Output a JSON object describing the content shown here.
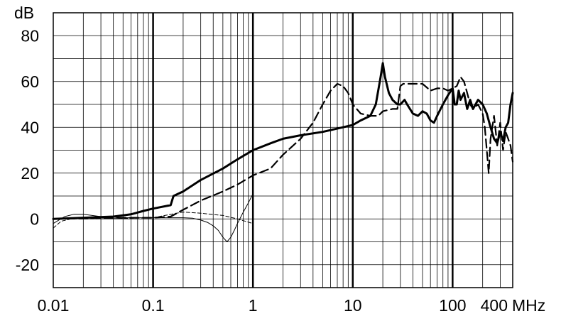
{
  "chart_data": {
    "type": "line",
    "title": "",
    "xlabel": "MHz",
    "ylabel": "dB",
    "xscale": "log",
    "xlim": [
      0.01,
      400
    ],
    "ylim": [
      -30,
      90
    ],
    "grid": true,
    "legend": "none",
    "x_ticks": [
      {
        "value": 0.01,
        "label": "0.01"
      },
      {
        "value": 0.1,
        "label": "0.1"
      },
      {
        "value": 1,
        "label": "1"
      },
      {
        "value": 10,
        "label": "10"
      },
      {
        "value": 100,
        "label": "100"
      },
      {
        "value": 400,
        "label": "400"
      }
    ],
    "y_ticks": [
      {
        "value": 80,
        "label": "80"
      },
      {
        "value": 60,
        "label": "60"
      },
      {
        "value": 40,
        "label": "40"
      },
      {
        "value": 20,
        "label": "20"
      },
      {
        "value": 0,
        "label": "0"
      },
      {
        "value": -20,
        "label": "-20"
      }
    ],
    "series": [
      {
        "style": "thick-solid",
        "points": [
          [
            0.01,
            0
          ],
          [
            0.02,
            0.5
          ],
          [
            0.04,
            1
          ],
          [
            0.06,
            2
          ],
          [
            0.08,
            3.5
          ],
          [
            0.1,
            4.5
          ],
          [
            0.15,
            6
          ],
          [
            0.16,
            10
          ],
          [
            0.2,
            12
          ],
          [
            0.3,
            17
          ],
          [
            0.5,
            22
          ],
          [
            0.7,
            26
          ],
          [
            1,
            30
          ],
          [
            1.5,
            33
          ],
          [
            2,
            35
          ],
          [
            3,
            36.5
          ],
          [
            5,
            38
          ],
          [
            8,
            40
          ],
          [
            10,
            41
          ],
          [
            12,
            43
          ],
          [
            15,
            45
          ],
          [
            17,
            50
          ],
          [
            19,
            62
          ],
          [
            20,
            68
          ],
          [
            21,
            62
          ],
          [
            23,
            55
          ],
          [
            25,
            52
          ],
          [
            28,
            50
          ],
          [
            30,
            50
          ],
          [
            33,
            52
          ],
          [
            35,
            50
          ],
          [
            40,
            46
          ],
          [
            45,
            45
          ],
          [
            50,
            47
          ],
          [
            55,
            46
          ],
          [
            60,
            43
          ],
          [
            65,
            42
          ],
          [
            70,
            45
          ],
          [
            80,
            50
          ],
          [
            90,
            54
          ],
          [
            100,
            57
          ],
          [
            105,
            50
          ],
          [
            110,
            50
          ],
          [
            115,
            56
          ],
          [
            120,
            52
          ],
          [
            130,
            55
          ],
          [
            140,
            48
          ],
          [
            150,
            52
          ],
          [
            160,
            48
          ],
          [
            180,
            52
          ],
          [
            200,
            50
          ],
          [
            220,
            46
          ],
          [
            240,
            40
          ],
          [
            260,
            35
          ],
          [
            280,
            33
          ],
          [
            300,
            38
          ],
          [
            320,
            34
          ],
          [
            340,
            40
          ],
          [
            360,
            42
          ],
          [
            380,
            50
          ],
          [
            400,
            55
          ]
        ]
      },
      {
        "style": "thick-dashed",
        "points": [
          [
            0.01,
            0
          ],
          [
            0.02,
            0.2
          ],
          [
            0.05,
            0.5
          ],
          [
            0.1,
            0.5
          ],
          [
            0.15,
            1
          ],
          [
            0.2,
            4
          ],
          [
            0.3,
            8
          ],
          [
            0.5,
            12
          ],
          [
            0.7,
            15
          ],
          [
            1,
            19
          ],
          [
            1.5,
            22
          ],
          [
            2,
            28
          ],
          [
            3,
            35
          ],
          [
            4,
            42
          ],
          [
            5,
            50
          ],
          [
            6,
            56
          ],
          [
            7,
            59
          ],
          [
            8,
            58
          ],
          [
            9,
            55
          ],
          [
            10,
            50
          ],
          [
            12,
            46
          ],
          [
            15,
            45
          ],
          [
            18,
            45
          ],
          [
            20,
            47
          ],
          [
            25,
            48
          ],
          [
            28,
            48
          ],
          [
            30,
            58
          ],
          [
            32,
            59
          ],
          [
            35,
            59
          ],
          [
            50,
            59
          ],
          [
            60,
            56
          ],
          [
            70,
            57
          ],
          [
            80,
            57
          ],
          [
            90,
            56
          ],
          [
            100,
            57
          ],
          [
            110,
            58
          ],
          [
            120,
            62
          ],
          [
            130,
            60
          ],
          [
            140,
            55
          ],
          [
            150,
            50
          ],
          [
            160,
            48
          ],
          [
            180,
            50
          ],
          [
            200,
            46
          ],
          [
            210,
            40
          ],
          [
            220,
            30
          ],
          [
            230,
            20
          ],
          [
            240,
            35
          ],
          [
            260,
            45
          ],
          [
            280,
            32
          ],
          [
            300,
            42
          ],
          [
            320,
            30
          ],
          [
            340,
            38
          ],
          [
            360,
            35
          ],
          [
            380,
            32
          ],
          [
            400,
            25
          ]
        ]
      },
      {
        "style": "thin-solid",
        "points": [
          [
            0.01,
            -2
          ],
          [
            0.013,
            1
          ],
          [
            0.016,
            2
          ],
          [
            0.02,
            2
          ],
          [
            0.03,
            1
          ],
          [
            0.05,
            0.5
          ],
          [
            0.08,
            0.5
          ],
          [
            0.1,
            0.5
          ],
          [
            0.15,
            0.5
          ],
          [
            0.2,
            0.5
          ],
          [
            0.25,
            0.3
          ],
          [
            0.3,
            -0.5
          ],
          [
            0.35,
            -1.5
          ],
          [
            0.4,
            -3
          ],
          [
            0.45,
            -5
          ],
          [
            0.5,
            -8
          ],
          [
            0.55,
            -10
          ],
          [
            0.6,
            -8
          ],
          [
            0.65,
            -5
          ],
          [
            0.7,
            -2
          ],
          [
            0.8,
            3
          ],
          [
            0.9,
            7
          ],
          [
            1,
            11
          ]
        ]
      },
      {
        "style": "thin-dashed",
        "points": [
          [
            0.01,
            -4
          ],
          [
            0.012,
            -1
          ],
          [
            0.015,
            0
          ],
          [
            0.02,
            0
          ],
          [
            0.05,
            0.2
          ],
          [
            0.1,
            0.5
          ],
          [
            0.15,
            2
          ],
          [
            0.2,
            3
          ],
          [
            0.3,
            2.5
          ],
          [
            0.5,
            1.5
          ],
          [
            0.7,
            0
          ],
          [
            1,
            -2
          ]
        ]
      }
    ]
  }
}
